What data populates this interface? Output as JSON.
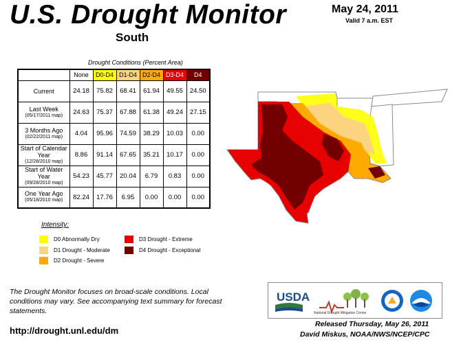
{
  "header": {
    "title": "U.S. Drought Monitor",
    "region": "South",
    "date": "May 24, 2011",
    "valid": "Valid 7 a.m. EST"
  },
  "table": {
    "caption": "Drought Conditions (Percent Area)",
    "columns": [
      "None",
      "D0-D4",
      "D1-D4",
      "D2-D4",
      "D3-D4",
      "D4"
    ],
    "rows": [
      {
        "label": "Current",
        "sub": "",
        "values": [
          "24.18",
          "75.82",
          "68.41",
          "61.94",
          "49.55",
          "24.50"
        ]
      },
      {
        "label": "Last Week",
        "sub": "(05/17/2011 map)",
        "values": [
          "24.63",
          "75.37",
          "67.88",
          "61.38",
          "49.24",
          "27.15"
        ]
      },
      {
        "label": "3 Months Ago",
        "sub": "(02/22/2011 map)",
        "values": [
          "4.04",
          "95.96",
          "74.59",
          "38.29",
          "10.03",
          "0.00"
        ]
      },
      {
        "label": "Start of Calendar Year",
        "sub": "(12/28/2010 map)",
        "values": [
          "8.86",
          "91.14",
          "67.65",
          "35.21",
          "10.17",
          "0.00"
        ]
      },
      {
        "label": "Start of Water Year",
        "sub": "(09/28/2010 map)",
        "values": [
          "54.23",
          "45.77",
          "20.04",
          "6.79",
          "0.83",
          "0.00"
        ]
      },
      {
        "label": "One Year Ago",
        "sub": "(05/18/2010 map)",
        "values": [
          "82.24",
          "17.76",
          "6.95",
          "0.00",
          "0.00",
          "0.00"
        ]
      }
    ]
  },
  "legend": {
    "title": "Intensity:",
    "items": [
      {
        "label": "D0 Abnormally Dry",
        "color": "#ffff00"
      },
      {
        "label": "D1 Drought - Moderate",
        "color": "#fcd37f"
      },
      {
        "label": "D2 Drought - Severe",
        "color": "#ffaa00"
      },
      {
        "label": "D3 Drought - Extreme",
        "color": "#e60000"
      },
      {
        "label": "D4 Drought - Exceptional",
        "color": "#730000"
      }
    ]
  },
  "footer": {
    "note": "The Drought Monitor focuses on broad-scale conditions. Local conditions may vary. See accompanying text summary for forecast statements.",
    "url": "http://drought.unl.edu/dm",
    "released": "Released Thursday, May 26, 2011",
    "author": "David Miskus, NOAA/NWS/NCEP/CPC"
  },
  "logos": {
    "usda": "USDA",
    "ndmc": "National Drought Mitigation Center"
  }
}
